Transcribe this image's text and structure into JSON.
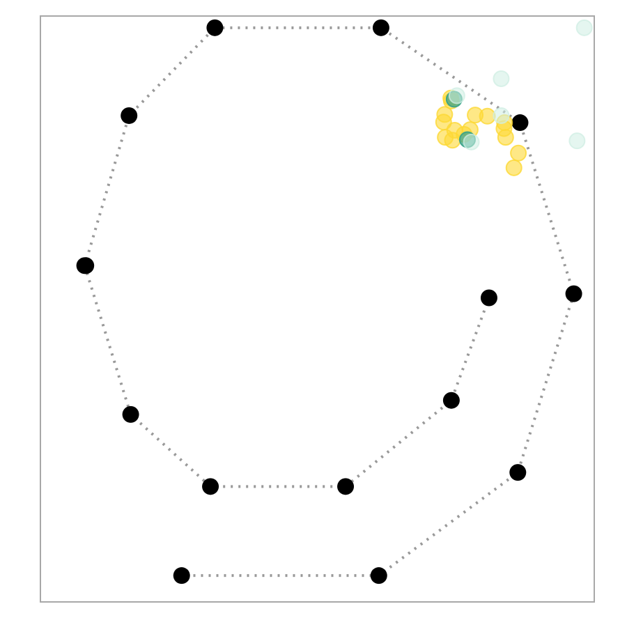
{
  "chart_data": {
    "type": "scatter",
    "title": "",
    "xlabel": "",
    "ylabel": "",
    "xlim": [
      0,
      1
    ],
    "ylim": [
      0,
      1
    ],
    "axes_visible": false,
    "grid": false,
    "path": {
      "style": "dotted",
      "color": "#999999",
      "marker_color": "#000000",
      "points": [
        {
          "x": 0.315,
          "y": 0.98
        },
        {
          "x": 0.615,
          "y": 0.98
        },
        {
          "x": 0.866,
          "y": 0.818
        },
        {
          "x": 0.963,
          "y": 0.526
        },
        {
          "x": 0.862,
          "y": 0.221
        },
        {
          "x": 0.611,
          "y": 0.045
        },
        {
          "x": 0.255,
          "y": 0.045
        },
        {
          "x": 0.255,
          "y": 0.045
        }
      ],
      "segments": [
        [
          {
            "x": 0.315,
            "y": 0.98
          },
          {
            "x": 0.615,
            "y": 0.98
          },
          {
            "x": 0.866,
            "y": 0.818
          },
          {
            "x": 0.963,
            "y": 0.526
          },
          {
            "x": 0.862,
            "y": 0.221
          },
          {
            "x": 0.611,
            "y": 0.045
          },
          {
            "x": 0.255,
            "y": 0.045
          }
        ],
        [
          {
            "x": 0.082,
            "y": 0.574
          },
          {
            "x": 0.08,
            "y": 0.574
          },
          {
            "x": 0.16,
            "y": 0.83
          },
          {
            "x": 0.315,
            "y": 0.98
          }
        ],
        [
          {
            "x": 0.08,
            "y": 0.574
          },
          {
            "x": 0.163,
            "y": 0.32
          },
          {
            "x": 0.307,
            "y": 0.197
          },
          {
            "x": 0.551,
            "y": 0.197
          },
          {
            "x": 0.742,
            "y": 0.344
          },
          {
            "x": 0.81,
            "y": 0.519
          }
        ]
      ]
    },
    "series": [
      {
        "color": "#fdd835",
        "opacity": 0.6,
        "points": [
          {
            "x": 0.741,
            "y": 0.86
          },
          {
            "x": 0.742,
            "y": 0.855
          },
          {
            "x": 0.73,
            "y": 0.832
          },
          {
            "x": 0.728,
            "y": 0.819
          },
          {
            "x": 0.731,
            "y": 0.793
          },
          {
            "x": 0.744,
            "y": 0.788
          },
          {
            "x": 0.748,
            "y": 0.805
          },
          {
            "x": 0.765,
            "y": 0.798
          },
          {
            "x": 0.776,
            "y": 0.806
          },
          {
            "x": 0.785,
            "y": 0.831
          },
          {
            "x": 0.807,
            "y": 0.829
          },
          {
            "x": 0.838,
            "y": 0.818
          },
          {
            "x": 0.837,
            "y": 0.808
          },
          {
            "x": 0.84,
            "y": 0.793
          },
          {
            "x": 0.863,
            "y": 0.766
          },
          {
            "x": 0.855,
            "y": 0.741
          }
        ]
      },
      {
        "color": "#3aa389",
        "opacity": 0.75,
        "points": [
          {
            "x": 0.747,
            "y": 0.858
          },
          {
            "x": 0.771,
            "y": 0.789
          }
        ]
      },
      {
        "color": "#cfeee3",
        "opacity": 0.55,
        "points": [
          {
            "x": 0.982,
            "y": 0.98
          },
          {
            "x": 0.832,
            "y": 0.893
          },
          {
            "x": 0.832,
            "y": 0.83
          },
          {
            "x": 0.969,
            "y": 0.787
          },
          {
            "x": 0.752,
            "y": 0.864
          },
          {
            "x": 0.778,
            "y": 0.785
          }
        ]
      }
    ]
  }
}
